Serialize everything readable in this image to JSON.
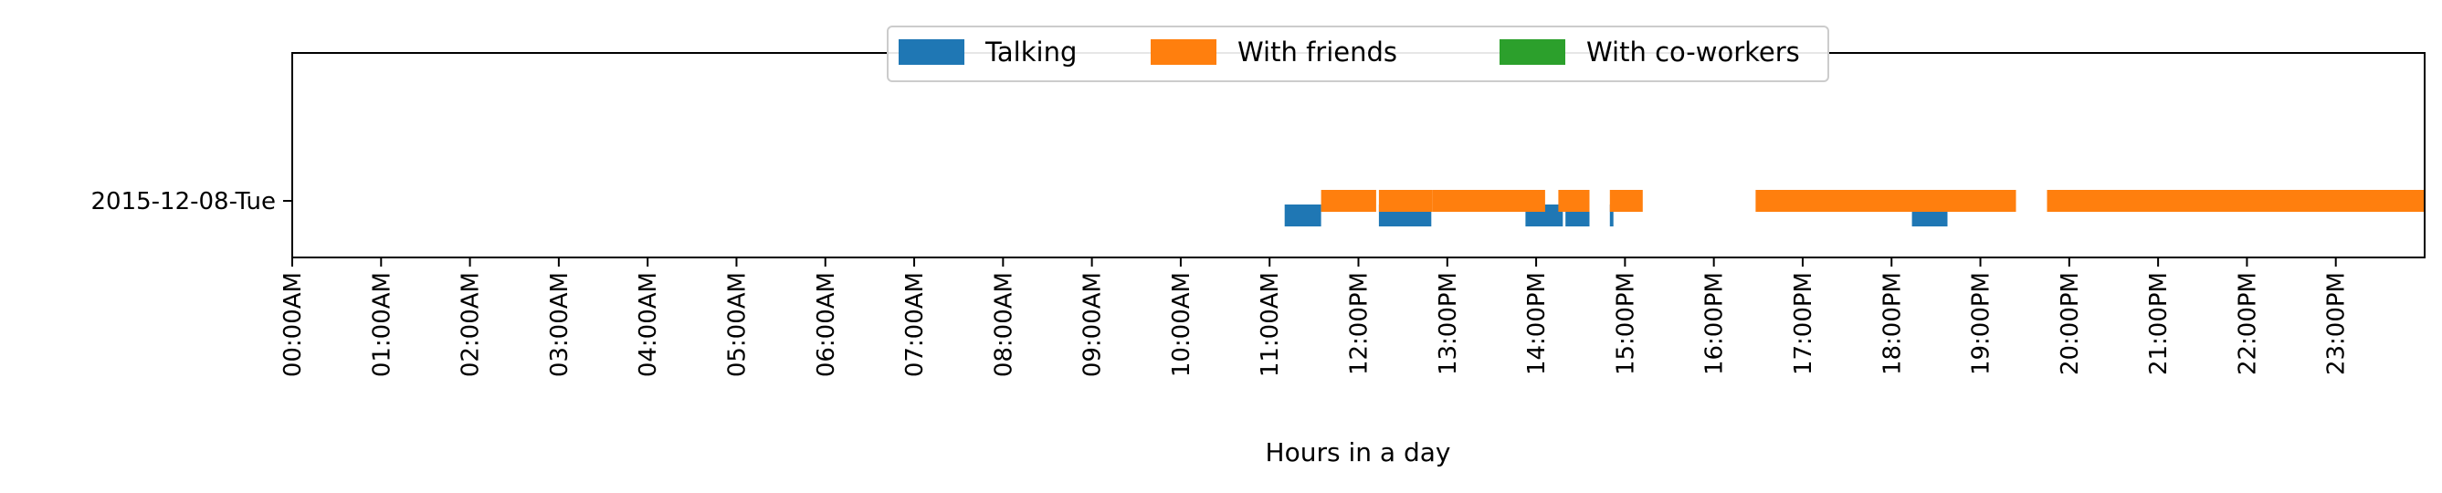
{
  "chart_data": {
    "type": "bar",
    "orientation": "horizontal-timeline",
    "title": "",
    "xlabel": "Hours in a day",
    "ylabel": "",
    "xlim": [
      0,
      24
    ],
    "x_tick_labels": [
      "00:00AM",
      "01:00AM",
      "02:00AM",
      "03:00AM",
      "04:00AM",
      "05:00AM",
      "06:00AM",
      "07:00AM",
      "08:00AM",
      "09:00AM",
      "10:00AM",
      "11:00AM",
      "12:00PM",
      "13:00PM",
      "14:00PM",
      "15:00PM",
      "16:00PM",
      "17:00PM",
      "18:00PM",
      "19:00PM",
      "20:00PM",
      "21:00PM",
      "22:00PM",
      "23:00PM"
    ],
    "categories": [
      "2015-12-08-Tue"
    ],
    "grid": false,
    "legend_position": "top-center",
    "series": [
      {
        "name": "Talking",
        "color": "#1f77b4",
        "intervals": [
          [
            11.17,
            11.58
          ],
          [
            12.23,
            12.82
          ],
          [
            13.88,
            14.3
          ],
          [
            14.33,
            14.6
          ],
          [
            14.83,
            14.87
          ],
          [
            18.23,
            18.63
          ]
        ]
      },
      {
        "name": "With friends",
        "color": "#ff7f0e",
        "intervals": [
          [
            11.58,
            12.2
          ],
          [
            12.23,
            12.83
          ],
          [
            12.83,
            14.1
          ],
          [
            14.25,
            14.6
          ],
          [
            14.83,
            15.2
          ],
          [
            16.47,
            19.4
          ],
          [
            19.75,
            24.0
          ]
        ]
      },
      {
        "name": "With co-workers",
        "color": "#2ca02c",
        "intervals": []
      }
    ]
  }
}
